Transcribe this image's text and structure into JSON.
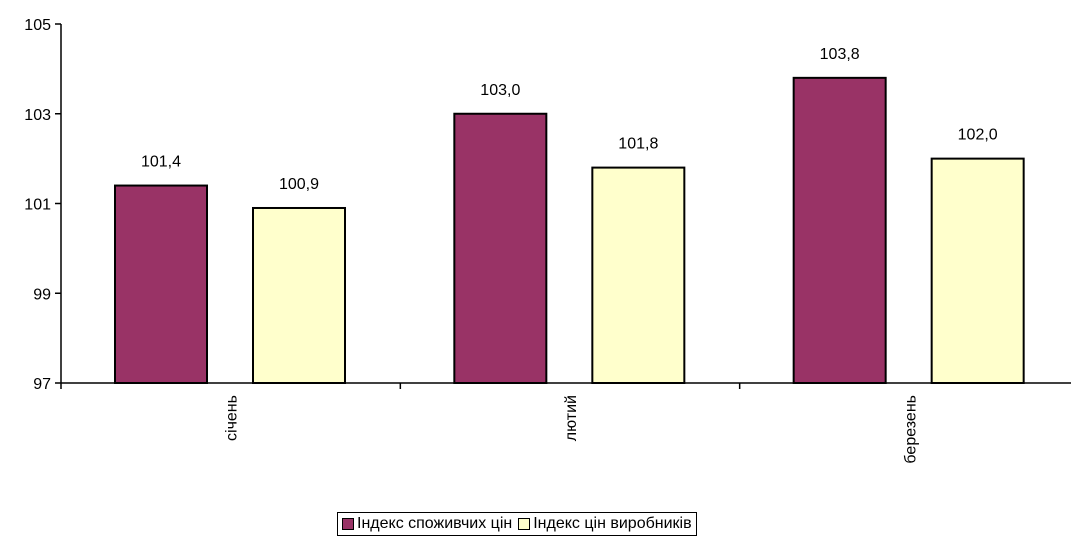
{
  "chart_data": {
    "type": "bar",
    "title": "",
    "xlabel": "",
    "ylabel": "",
    "categories": [
      "січень",
      "лютий",
      "березень"
    ],
    "series": [
      {
        "name": "Індекс споживчих цін",
        "values": [
          101.4,
          103.0,
          103.8
        ],
        "labels": [
          "101,4",
          "103,0",
          "103,8"
        ],
        "color": "#993366"
      },
      {
        "name": "Індекс цін виробників",
        "values": [
          100.9,
          101.8,
          102.0
        ],
        "labels": [
          "100,9",
          "101,8",
          "102,0"
        ],
        "color": "#FFFFCC"
      }
    ],
    "ylim": [
      97,
      105
    ],
    "yticks": [
      97,
      99,
      101,
      103,
      105
    ],
    "grid": false,
    "legend_position": "bottom"
  }
}
